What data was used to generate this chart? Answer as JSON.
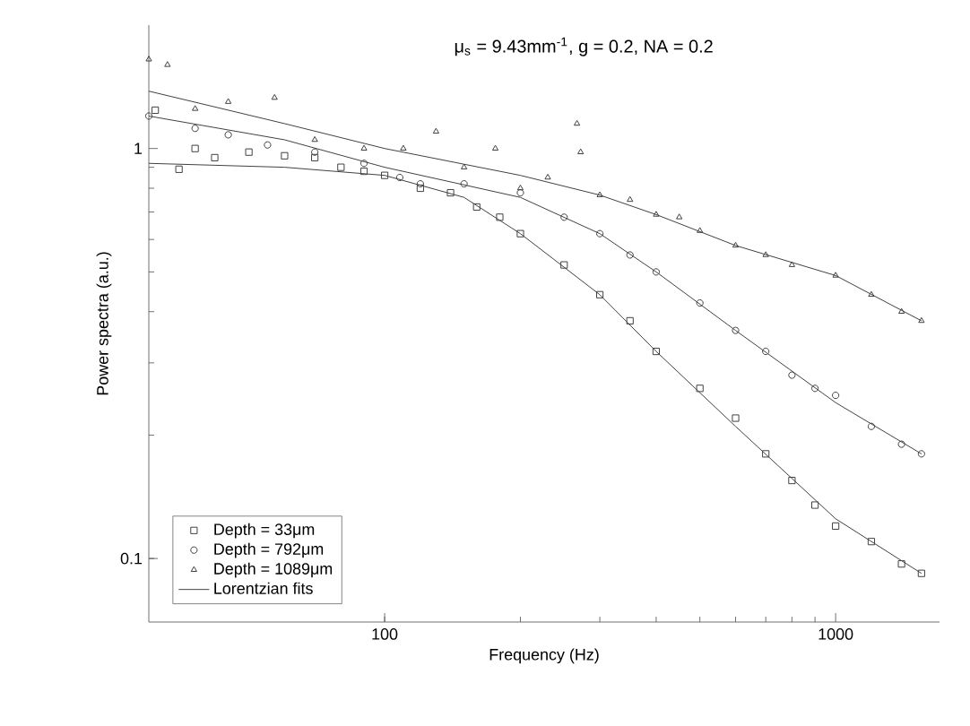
{
  "chart_data": {
    "type": "scatter",
    "title": "μ$_{s}$ = 9.43mm$^{-1}$, g = 0.2, NA = 0.2",
    "xlabel": "Frequency (Hz)",
    "ylabel": "Power spectra (a.u.)",
    "log": "xy",
    "xlim": [
      30,
      1700
    ],
    "ylim": [
      0.07,
      2
    ],
    "xticks": [
      100,
      1000
    ],
    "yticks": [
      0.1,
      1
    ],
    "legend": "bottom left",
    "series": [
      {
        "name": "Depth = 33μm",
        "color": "#404040",
        "marker": "square",
        "x": [
          31,
          35,
          38,
          42,
          50,
          60,
          70,
          80,
          90,
          100,
          120,
          140,
          160,
          180,
          200,
          250,
          300,
          350,
          400,
          500,
          600,
          700,
          800,
          900,
          1000,
          1200,
          1400,
          1550
        ],
        "values": [
          1.24,
          0.89,
          1.0,
          0.95,
          0.98,
          0.96,
          0.95,
          0.9,
          0.88,
          0.86,
          0.8,
          0.78,
          0.72,
          0.68,
          0.62,
          0.52,
          0.44,
          0.38,
          0.32,
          0.26,
          0.22,
          0.18,
          0.155,
          0.135,
          0.12,
          0.11,
          0.097,
          0.092
        ]
      },
      {
        "name": "Depth = 792μm",
        "color": "#404040",
        "marker": "circle",
        "x": [
          30,
          38,
          45,
          55,
          70,
          90,
          108,
          120,
          150,
          200,
          250,
          300,
          350,
          400,
          500,
          600,
          700,
          800,
          900,
          1000,
          1200,
          1400,
          1550
        ],
        "values": [
          1.2,
          1.12,
          1.08,
          1.02,
          0.98,
          0.92,
          0.85,
          0.82,
          0.82,
          0.78,
          0.68,
          0.62,
          0.55,
          0.5,
          0.42,
          0.36,
          0.32,
          0.28,
          0.26,
          0.25,
          0.21,
          0.19,
          0.18
        ]
      },
      {
        "name": "Depth = 1089μm",
        "color": "#404040",
        "marker": "triangle",
        "x": [
          30,
          33,
          38,
          45,
          57,
          70,
          90,
          110,
          130,
          150,
          176,
          200,
          230,
          267,
          272,
          300,
          350,
          400,
          450,
          500,
          600,
          700,
          800,
          1000,
          1200,
          1400,
          1550
        ],
        "values": [
          1.65,
          1.6,
          1.25,
          1.3,
          1.33,
          1.05,
          1.0,
          1.0,
          1.1,
          0.9,
          1.0,
          0.8,
          0.85,
          1.15,
          0.98,
          0.77,
          0.75,
          0.69,
          0.68,
          0.63,
          0.58,
          0.55,
          0.52,
          0.49,
          0.44,
          0.4,
          0.38
        ]
      },
      {
        "name": "Lorentzian fits",
        "type": "line",
        "color": "#404040",
        "marker": "none",
        "x": [
          30,
          60,
          100,
          150,
          200,
          300,
          400,
          600,
          1000,
          1550
        ],
        "values": [
          0.92,
          0.9,
          0.86,
          0.76,
          0.62,
          0.44,
          0.32,
          0.21,
          0.125,
          0.092
        ]
      },
      {
        "type": "line",
        "color": "#404040",
        "marker": "none",
        "x": [
          30,
          60,
          100,
          200,
          300,
          400,
          600,
          1000,
          1550
        ],
        "values": [
          1.2,
          1.05,
          0.9,
          0.76,
          0.62,
          0.5,
          0.36,
          0.24,
          0.18
        ]
      },
      {
        "type": "line",
        "color": "#404040",
        "marker": "none",
        "x": [
          30,
          60,
          100,
          200,
          300,
          400,
          600,
          1000,
          1550
        ],
        "values": [
          1.38,
          1.15,
          1.0,
          0.86,
          0.77,
          0.69,
          0.58,
          0.49,
          0.38
        ]
      }
    ]
  }
}
